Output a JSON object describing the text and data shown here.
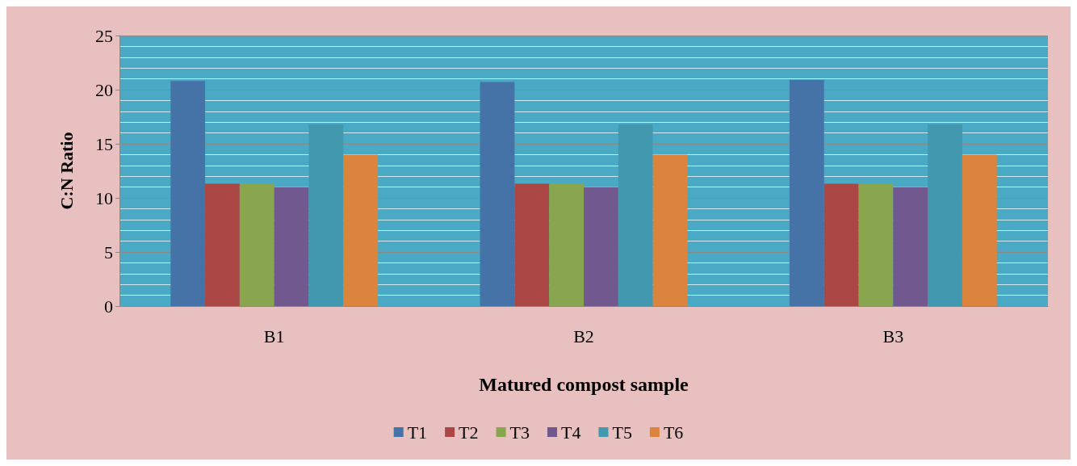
{
  "chart_data": {
    "type": "bar",
    "xlabel": "Matured compost sample",
    "ylabel": "C:N Ratio",
    "categories": [
      "B1",
      "B2",
      "B3"
    ],
    "series": [
      {
        "name": "T1",
        "color": "#4572a7",
        "values": [
          20.8,
          20.7,
          20.9
        ]
      },
      {
        "name": "T2",
        "color": "#aa4643",
        "values": [
          11.3,
          11.3,
          11.3
        ]
      },
      {
        "name": "T3",
        "color": "#89a54e",
        "values": [
          11.3,
          11.3,
          11.3
        ]
      },
      {
        "name": "T4",
        "color": "#71588f",
        "values": [
          11,
          11,
          11
        ]
      },
      {
        "name": "T5",
        "color": "#4198af",
        "values": [
          16.8,
          16.8,
          16.8
        ]
      },
      {
        "name": "T6",
        "color": "#db843d",
        "values": [
          14,
          14,
          14
        ]
      }
    ],
    "ylim": [
      0,
      25
    ],
    "yticks": [
      0,
      5,
      10,
      15,
      20,
      25
    ],
    "grid": "y",
    "legend": "bottom"
  }
}
